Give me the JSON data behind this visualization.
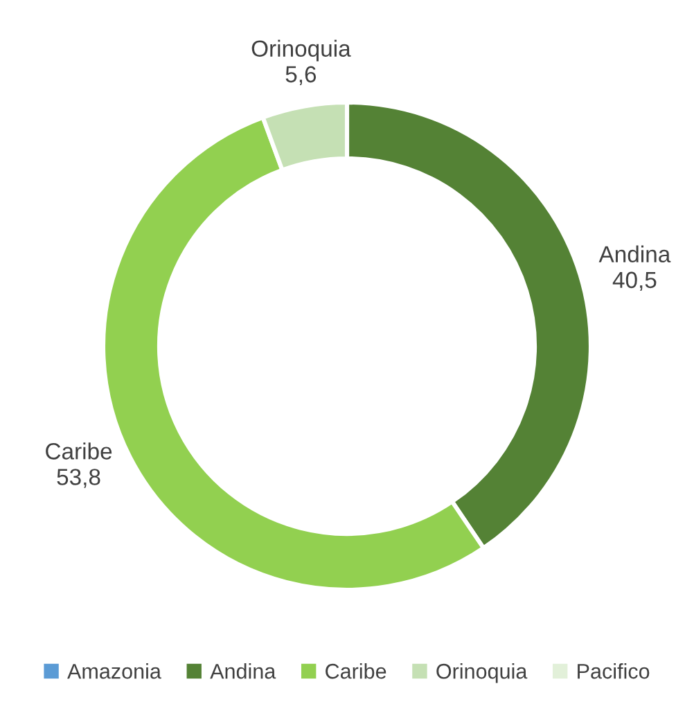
{
  "chart_data": {
    "type": "donut",
    "categories": [
      "Amazonia",
      "Andina",
      "Caribe",
      "Orinoquia",
      "Pacifico"
    ],
    "values": [
      0,
      40.5,
      53.8,
      5.6,
      0
    ],
    "colors": [
      "#5b9bd5",
      "#548235",
      "#92d050",
      "#c5e0b4",
      "#e2f0d9"
    ],
    "value_labels": [
      null,
      "40,5",
      "53,8",
      "5,6",
      null
    ],
    "legend": "bottom"
  }
}
